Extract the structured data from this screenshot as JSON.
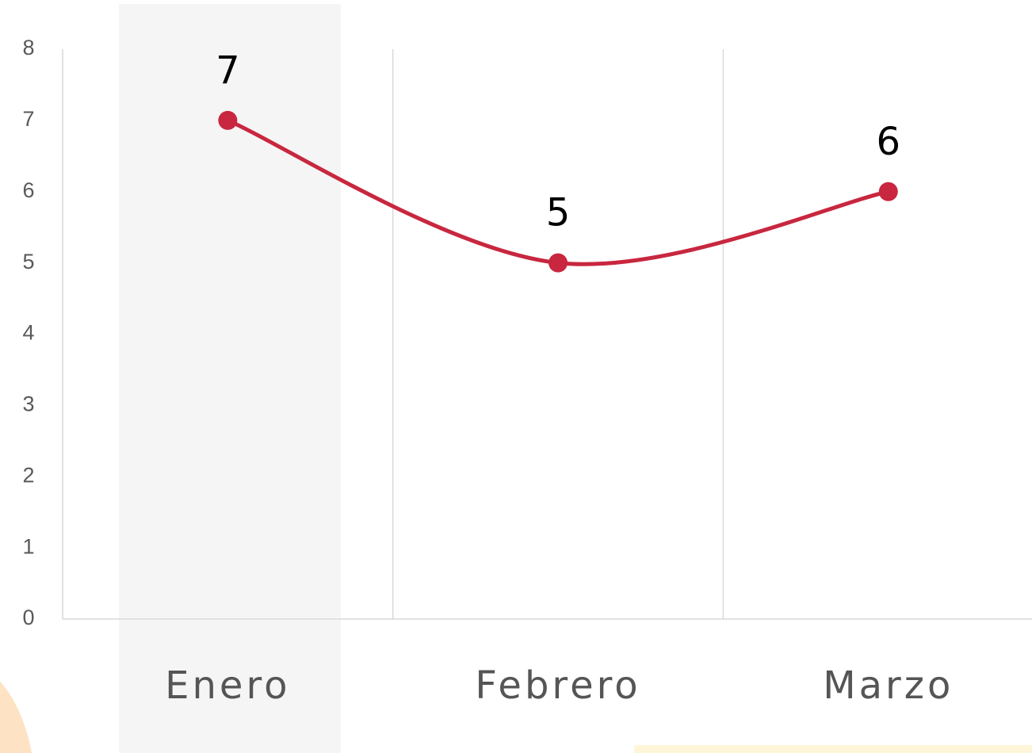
{
  "chart_data": {
    "type": "line",
    "categories": [
      "Enero",
      "Febrero",
      "Marzo"
    ],
    "series": [
      {
        "color": "#c8273f",
        "values": [
          7,
          5,
          6
        ]
      }
    ],
    "ylim": [
      0,
      8
    ],
    "yticks": [
      0,
      1,
      2,
      3,
      4,
      5,
      6,
      7,
      8
    ],
    "grid": false,
    "smooth": true
  }
}
